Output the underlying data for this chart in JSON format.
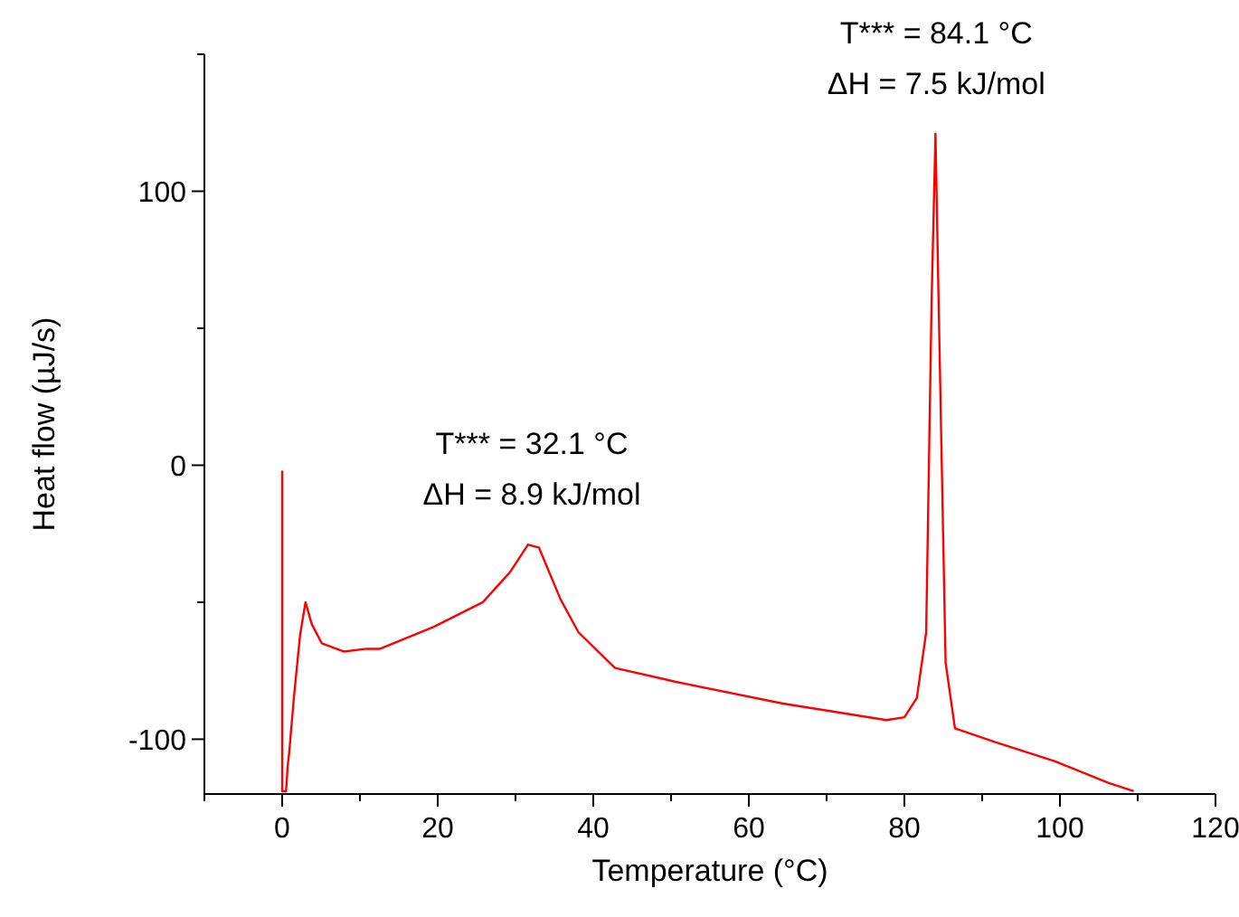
{
  "chart_data": {
    "type": "line",
    "xlabel": "Temperature (°C)",
    "ylabel": "Heat flow (µJ/s)",
    "xlim": [
      -10,
      120
    ],
    "xticks": [
      {
        "value": -10,
        "label": null
      },
      0,
      {
        "value": 10,
        "label": null
      },
      20,
      {
        "value": 30,
        "label": null
      },
      40,
      {
        "value": 50,
        "label": null
      },
      60,
      {
        "value": 70,
        "label": null
      },
      80,
      {
        "value": 90,
        "label": null
      },
      100,
      {
        "value": 110,
        "label": null
      },
      120
    ],
    "ylim": [
      -120,
      150
    ],
    "yticks": [
      -100,
      {
        "value": -50,
        "label": null
      },
      0,
      {
        "value": 50,
        "label": null
      },
      100,
      {
        "value": 150,
        "label": null
      }
    ],
    "grid": false,
    "marker": "none",
    "line_style": "solid",
    "series": [
      {
        "color": "#ff0000",
        "x": [
          0,
          0,
          0.5,
          0.7,
          0.9,
          1.5,
          2.3,
          3.0,
          3.8,
          5.1,
          7.9,
          10.9,
          12.6,
          19.5,
          25.8,
          29.3,
          31.6,
          33.0,
          35.8,
          38.1,
          42.8,
          49,
          50.5,
          64.4,
          77.7,
          80,
          81.6,
          82.8,
          83.5,
          84.0,
          84.4,
          85.3,
          86.5,
          91.6,
          99.3,
          106.3,
          109.5
        ],
        "values": [
          -2,
          -119,
          -119,
          -110,
          -105,
          -85,
          -62,
          -50,
          -58,
          -65,
          -68,
          -67,
          -67,
          -59,
          -50,
          -39,
          -29,
          -30,
          -49,
          -61,
          -74,
          -78,
          -79,
          -87,
          -93,
          -92,
          -85,
          -61,
          60,
          121,
          60,
          -72,
          -96,
          -101,
          -108,
          -116,
          -119
        ]
      }
    ],
    "annotations": [
      {
        "text": "T*** = 32.1 °C\nΔH = 8.9 kJ/mol",
        "x": 32.1,
        "y": -29
      },
      {
        "text": "T*** = 84.1 °C\nΔH = 7.5 kJ/mol",
        "x": 84.1,
        "y": 121
      }
    ]
  }
}
